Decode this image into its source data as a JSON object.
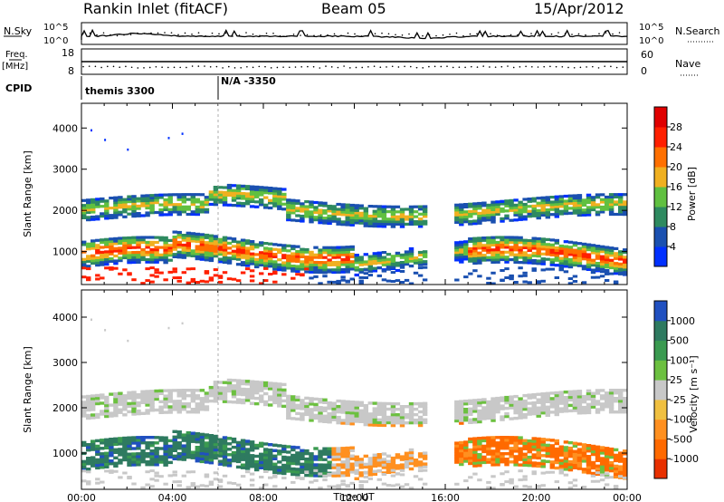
{
  "header": {
    "station": "Rankin Inlet (fitACF)",
    "beam": "Beam 05",
    "date": "15/Apr/2012"
  },
  "strip_labels": {
    "nsky": "N.Sky",
    "nsearch": "N.Search",
    "freq": "Freq.",
    "freq_unit": "[MHz]",
    "nave": "Nave",
    "cpid": "CPID"
  },
  "strip_ticks": {
    "nsky_top": "10^5",
    "nsky_bottom": "10^0",
    "nsearch_top": "10^5",
    "nsearch_bottom": "10^0",
    "freq_top": "18",
    "freq_bottom": "8",
    "nave_top": "60",
    "nave_bottom": "0"
  },
  "cpid_segments": [
    {
      "label": "themis 3300",
      "start_ut": "00:00",
      "end_ut": "06:00"
    },
    {
      "label": "N/A -3350",
      "start_ut": "06:00",
      "end_ut": "24:00"
    }
  ],
  "chart_data": [
    {
      "type": "heatmap",
      "name": "power",
      "ylabel": "Slant Range [km]",
      "yticks": [
        "1000",
        "2000",
        "3000",
        "4000"
      ],
      "ylim": [
        200,
        4600
      ],
      "xlim_hours": [
        0,
        24
      ],
      "colorbar_label": "Power [dB]",
      "colorbar_ticks": [
        "4",
        "8",
        "12",
        "16",
        "20",
        "24",
        "28"
      ],
      "colorbar_colors": [
        "#0030ff",
        "#1a50b0",
        "#2e8a60",
        "#60c040",
        "#f0b020",
        "#ff7000",
        "#ff2000",
        "#e00000"
      ]
    },
    {
      "type": "heatmap",
      "name": "velocity",
      "ylabel": "Slant Range [km]",
      "yticks": [
        "1000",
        "2000",
        "3000",
        "4000"
      ],
      "ylim": [
        200,
        4600
      ],
      "xlim_hours": [
        0,
        24
      ],
      "xlabel": "Time UT",
      "xticks": [
        "00:00",
        "04:00",
        "08:00",
        "12:00",
        "16:00",
        "20:00",
        "00:00"
      ],
      "colorbar_label": "Velocity [m s⁻¹]",
      "colorbar_ticks": [
        "1000",
        "500",
        "100",
        "25",
        "-25",
        "-100",
        "-500",
        "-1000"
      ],
      "colorbar_colors": [
        "#2050c0",
        "#2e7a60",
        "#3a9a50",
        "#6cc040",
        "#c8c8c8",
        "#f0c040",
        "#ff9020",
        "#ff6a00",
        "#e83000"
      ]
    }
  ]
}
